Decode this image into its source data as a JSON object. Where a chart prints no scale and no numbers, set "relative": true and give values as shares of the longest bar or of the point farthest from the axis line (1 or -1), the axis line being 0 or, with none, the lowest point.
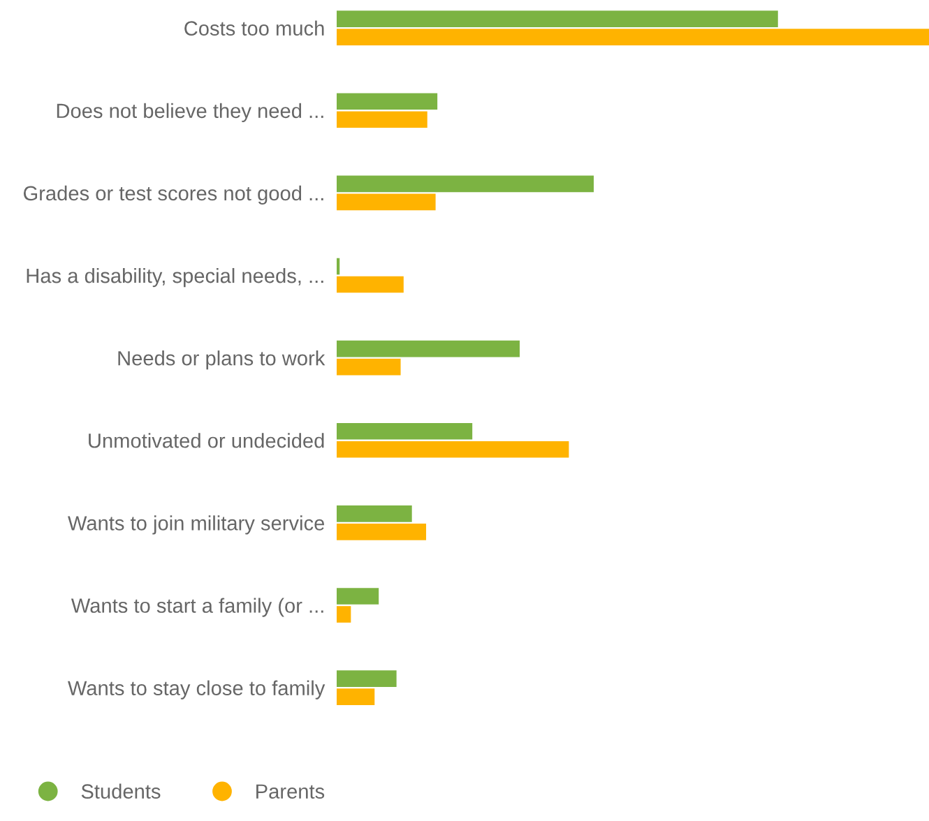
{
  "chart_data": {
    "type": "bar",
    "orientation": "horizontal",
    "relative": true,
    "legend": "bottom",
    "grid": false,
    "categories": [
      "Costs too much",
      "Does not believe they need ...",
      "Grades or test scores not good ...",
      "Has a disability, special needs, ...",
      "Needs or plans to work",
      "Unmotivated or undecided",
      "Wants to join military service",
      "Wants to start a family (or ...",
      "Wants to stay close to family"
    ],
    "series": [
      {
        "name": "Students",
        "color": "#7cb342",
        "values": [
          0.745,
          0.17,
          0.434,
          0.005,
          0.309,
          0.229,
          0.127,
          0.071,
          0.101
        ]
      },
      {
        "name": "Parents",
        "color": "#ffb300",
        "values": [
          1,
          0.153,
          0.167,
          0.113,
          0.108,
          0.392,
          0.151,
          0.024,
          0.064
        ]
      }
    ]
  }
}
